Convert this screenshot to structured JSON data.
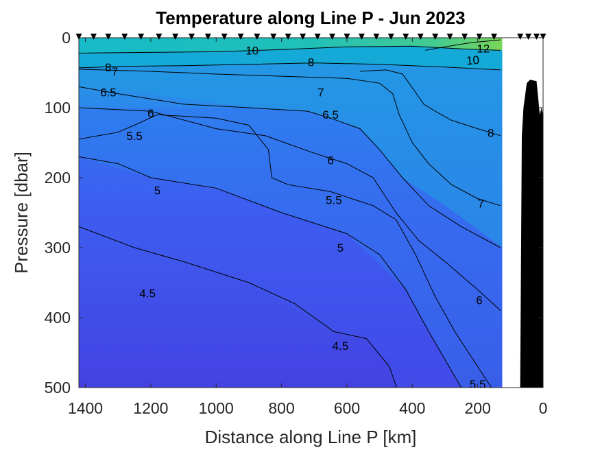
{
  "chart_data": {
    "type": "contour",
    "title": "Temperature along Line P - Jun 2023",
    "xlabel": "Distance along Line P [km]",
    "ylabel": "Pressure [dbar]",
    "xlim": [
      1420,
      0
    ],
    "ylim": [
      0,
      500
    ],
    "x_reversed": true,
    "y_reversed": true,
    "x_ticks": [
      1400,
      1200,
      1000,
      800,
      600,
      400,
      200,
      0
    ],
    "y_ticks": [
      0,
      100,
      200,
      300,
      400,
      500
    ],
    "data_x_extent": [
      1420,
      125
    ],
    "station_km": [
      1420,
      1375,
      1330,
      1280,
      1230,
      1175,
      1125,
      1075,
      1025,
      975,
      925,
      875,
      825,
      780,
      735,
      690,
      645,
      600,
      555,
      510,
      465,
      420,
      375,
      330,
      285,
      240,
      195,
      150,
      70,
      45,
      20,
      0
    ],
    "contour_levels": [
      4.5,
      5,
      5.5,
      6,
      6.5,
      7,
      8,
      10,
      12
    ],
    "contours": [
      {
        "level": 12,
        "points": [
          [
            130,
            3
          ],
          [
            220,
            7
          ],
          [
            300,
            13
          ],
          [
            360,
            18
          ]
        ],
        "labels": [
          [
            183,
            15,
            0
          ]
        ]
      },
      {
        "level": 10,
        "points": [
          [
            130,
            18
          ],
          [
            250,
            16
          ],
          [
            400,
            12
          ],
          [
            600,
            13
          ],
          [
            800,
            17
          ],
          [
            1000,
            20
          ],
          [
            1420,
            22
          ]
        ],
        "labels": [
          [
            890,
            18,
            0
          ],
          [
            215,
            32,
            -5
          ]
        ]
      },
      {
        "level": 8,
        "points": [
          [
            130,
            46
          ],
          [
            300,
            42
          ],
          [
            500,
            38
          ],
          [
            700,
            36
          ],
          [
            900,
            38
          ],
          [
            1100,
            40
          ],
          [
            1300,
            41
          ],
          [
            1420,
            43
          ]
        ],
        "labels": [
          [
            710,
            35,
            0
          ],
          [
            1330,
            42,
            0
          ]
        ]
      },
      {
        "level": 8,
        "points": [
          [
            130,
            140
          ],
          [
            200,
            130
          ],
          [
            280,
            118
          ],
          [
            330,
            105
          ],
          [
            365,
            95
          ],
          [
            395,
            75
          ],
          [
            430,
            52
          ],
          [
            480,
            46
          ],
          [
            560,
            48
          ]
        ],
        "labels": [
          [
            160,
            136,
            0
          ]
        ]
      },
      {
        "level": 7,
        "points": [
          [
            130,
            240
          ],
          [
            200,
            230
          ],
          [
            280,
            210
          ],
          [
            350,
            180
          ],
          [
            400,
            150
          ],
          [
            440,
            110
          ],
          [
            460,
            80
          ],
          [
            500,
            65
          ],
          [
            600,
            58
          ],
          [
            800,
            55
          ],
          [
            1000,
            52
          ],
          [
            1200,
            48
          ],
          [
            1420,
            45
          ]
        ],
        "labels": [
          [
            680,
            78,
            0
          ],
          [
            1310,
            48,
            0
          ],
          [
            190,
            237,
            0
          ]
        ]
      },
      {
        "level": 6.5,
        "points": [
          [
            130,
            300
          ],
          [
            250,
            270
          ],
          [
            350,
            240
          ],
          [
            430,
            200
          ],
          [
            500,
            160
          ],
          [
            560,
            130
          ],
          [
            650,
            115
          ],
          [
            720,
            105
          ],
          [
            900,
            100
          ],
          [
            1100,
            95
          ],
          [
            1300,
            80
          ],
          [
            1420,
            70
          ]
        ],
        "labels": [
          [
            650,
            110,
            0
          ],
          [
            1330,
            78,
            0
          ]
        ]
      },
      {
        "level": 6,
        "points": [
          [
            130,
            390
          ],
          [
            200,
            360
          ],
          [
            300,
            320
          ],
          [
            380,
            290
          ],
          [
            450,
            250
          ],
          [
            520,
            200
          ],
          [
            600,
            180
          ],
          [
            700,
            165
          ],
          [
            790,
            150
          ],
          [
            850,
            140
          ],
          [
            1000,
            130
          ],
          [
            1200,
            105
          ],
          [
            1420,
            100
          ]
        ],
        "labels": [
          [
            650,
            175,
            0
          ],
          [
            1200,
            108,
            0
          ],
          [
            195,
            375,
            0
          ]
        ]
      },
      {
        "level": 5.5,
        "points": [
          [
            130,
            520
          ],
          [
            200,
            470
          ],
          [
            270,
            420
          ],
          [
            330,
            370
          ],
          [
            390,
            310
          ],
          [
            450,
            260
          ],
          [
            520,
            240
          ],
          [
            650,
            220
          ],
          [
            780,
            210
          ],
          [
            830,
            200
          ],
          [
            840,
            160
          ],
          [
            900,
            125
          ],
          [
            1000,
            115
          ],
          [
            1180,
            110
          ],
          [
            1250,
            125
          ],
          [
            1300,
            135
          ],
          [
            1420,
            145
          ]
        ],
        "labels": [
          [
            640,
            232,
            0
          ],
          [
            1250,
            140,
            0
          ],
          [
            200,
            495,
            0
          ]
        ]
      },
      {
        "level": 5,
        "points": [
          [
            130,
            560
          ],
          [
            250,
            500
          ],
          [
            350,
            420
          ],
          [
            420,
            360
          ],
          [
            500,
            310
          ],
          [
            600,
            280
          ],
          [
            800,
            250
          ],
          [
            1000,
            215
          ],
          [
            1200,
            200
          ],
          [
            1300,
            180
          ],
          [
            1420,
            170
          ]
        ],
        "labels": [
          [
            620,
            300,
            0
          ],
          [
            1180,
            218,
            0
          ]
        ]
      },
      {
        "level": 4.5,
        "points": [
          [
            400,
            565
          ],
          [
            470,
            470
          ],
          [
            540,
            430
          ],
          [
            640,
            420
          ],
          [
            760,
            380
          ],
          [
            900,
            350
          ],
          [
            1100,
            320
          ],
          [
            1250,
            300
          ],
          [
            1420,
            270
          ]
        ],
        "labels": [
          [
            620,
            440,
            0
          ],
          [
            1210,
            365,
            0
          ]
        ]
      }
    ],
    "bathymetry_km": [
      [
        70,
        500
      ],
      [
        65,
        140
      ],
      [
        60,
        100
      ],
      [
        50,
        65
      ],
      [
        40,
        60
      ],
      [
        20,
        62
      ],
      [
        10,
        110
      ],
      [
        5,
        100
      ],
      [
        0,
        110
      ],
      [
        0,
        500
      ]
    ],
    "color_scale": {
      "min": 4.2,
      "max": 13,
      "low_color": "#4441e0",
      "mid_low": "#3f5aef",
      "mid": "#2ea0e0",
      "mid_high": "#10bcc8",
      "high_color": "#74d35f"
    }
  }
}
